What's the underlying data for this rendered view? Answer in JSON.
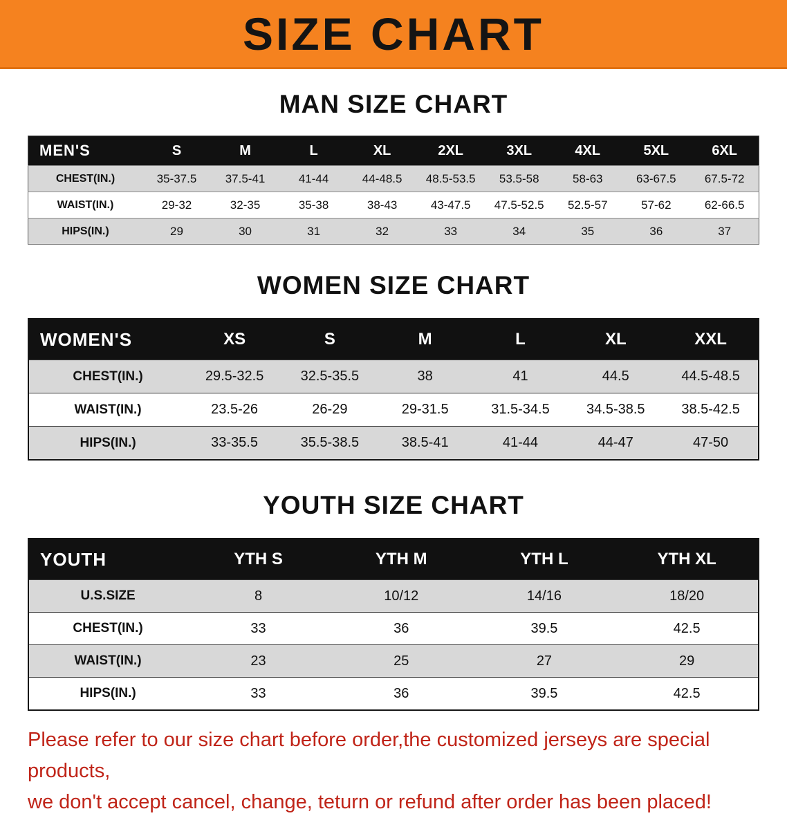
{
  "banner": {
    "title": "SIZE CHART"
  },
  "sections": [
    {
      "heading": "MAN SIZE CHART",
      "table": {
        "header": [
          "MEN'S",
          "S",
          "M",
          "L",
          "XL",
          "2XL",
          "3XL",
          "4XL",
          "5XL",
          "6XL"
        ],
        "rows": [
          [
            "CHEST(IN.)",
            "35-37.5",
            "37.5-41",
            "41-44",
            "44-48.5",
            "48.5-53.5",
            "53.5-58",
            "58-63",
            "63-67.5",
            "67.5-72"
          ],
          [
            "WAIST(IN.)",
            "29-32",
            "32-35",
            "35-38",
            "38-43",
            "43-47.5",
            "47.5-52.5",
            "52.5-57",
            "57-62",
            "62-66.5"
          ],
          [
            "HIPS(IN.)",
            "29",
            "30",
            "31",
            "32",
            "33",
            "34",
            "35",
            "36",
            "37"
          ]
        ]
      }
    },
    {
      "heading": "WOMEN SIZE CHART",
      "table": {
        "header": [
          "WOMEN'S",
          "XS",
          "S",
          "M",
          "L",
          "XL",
          "XXL"
        ],
        "rows": [
          [
            "CHEST(IN.)",
            "29.5-32.5",
            "32.5-35.5",
            "38",
            "41",
            "44.5",
            "44.5-48.5"
          ],
          [
            "WAIST(IN.)",
            "23.5-26",
            "26-29",
            "29-31.5",
            "31.5-34.5",
            "34.5-38.5",
            "38.5-42.5"
          ],
          [
            "HIPS(IN.)",
            "33-35.5",
            "35.5-38.5",
            "38.5-41",
            "41-44",
            "44-47",
            "47-50"
          ]
        ]
      }
    },
    {
      "heading": "YOUTH SIZE CHART",
      "table": {
        "header": [
          "YOUTH",
          "YTH S",
          "YTH M",
          "YTH L",
          "YTH XL"
        ],
        "rows": [
          [
            "U.S.SIZE",
            "8",
            "10/12",
            "14/16",
            "18/20"
          ],
          [
            "CHEST(IN.)",
            "33",
            "36",
            "39.5",
            "42.5"
          ],
          [
            "WAIST(IN.)",
            "23",
            "25",
            "27",
            "29"
          ],
          [
            "HIPS(IN.)",
            "33",
            "36",
            "39.5",
            "42.5"
          ]
        ]
      }
    }
  ],
  "disclaimer": {
    "line1": "Please refer to our size chart before order,the customized jerseys are special products,",
    "line2": "we don't accept cancel, change, teturn or refund after order has been placed!"
  },
  "colors": {
    "banner_bg": "#f5821f",
    "header_bg": "#111111",
    "shaded_row": "#d8d8d8",
    "disclaimer_text": "#c02418"
  }
}
